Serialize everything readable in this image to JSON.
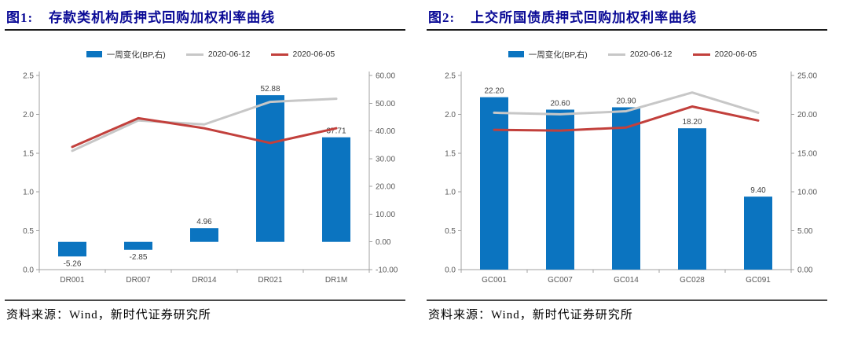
{
  "source_note": "资料来源：Wind，新时代证券研究所",
  "colors": {
    "bar_blue": "#0b74c0",
    "line_gray": "#c7c7c7",
    "line_red": "#c2403c",
    "title_blue": "#0a0a96",
    "axis": "#a0a0a0",
    "tick_text": "#595959",
    "label_text": "#404040"
  },
  "charts": [
    {
      "figure_label": "图1:",
      "title": "存款类机构质押式回购加权利率曲线",
      "legend": [
        {
          "type": "bar",
          "label": "一周变化(BP,右)",
          "color": "#0b74c0"
        },
        {
          "type": "line",
          "label": "2020-06-12",
          "color": "#c7c7c7"
        },
        {
          "type": "line",
          "label": "2020-06-05",
          "color": "#c2403c"
        }
      ],
      "chart_data": {
        "type": "bar+line combo",
        "categories": [
          "DR001",
          "DR007",
          "DR014",
          "DR021",
          "DR1M"
        ],
        "series": [
          {
            "name": "一周变化(BP,右)",
            "type": "bar",
            "axis": "right",
            "values": [
              -5.26,
              -2.85,
              4.96,
              52.88,
              37.71
            ],
            "labels": [
              "-5.26",
              "-2.85",
              "4.96",
              "52.88",
              "37.71"
            ]
          },
          {
            "name": "2020-06-12",
            "type": "line",
            "axis": "left",
            "values": [
              1.53,
              1.92,
              1.87,
              2.16,
              2.2
            ]
          },
          {
            "name": "2020-06-05",
            "type": "line",
            "axis": "left",
            "values": [
              1.58,
              1.95,
              1.82,
              1.63,
              1.82
            ]
          }
        ],
        "left_axis": {
          "min": 0,
          "max": 2.5,
          "ticks": [
            {
              "v": 0.0,
              "label": "0.0"
            },
            {
              "v": 0.5,
              "label": "0.5"
            },
            {
              "v": 1.0,
              "label": "1.0"
            },
            {
              "v": 1.5,
              "label": "1.5"
            },
            {
              "v": 2.0,
              "label": "2.0"
            },
            {
              "v": 2.5,
              "label": "2.5"
            }
          ]
        },
        "right_axis": {
          "min": -10,
          "max": 60,
          "ticks": [
            {
              "v": -10,
              "label": "-10.00"
            },
            {
              "v": 0,
              "label": "0.00"
            },
            {
              "v": 10,
              "label": "10.00"
            },
            {
              "v": 20,
              "label": "20.00"
            },
            {
              "v": 30,
              "label": "30.00"
            },
            {
              "v": 40,
              "label": "40.00"
            },
            {
              "v": 50,
              "label": "50.00"
            },
            {
              "v": 60,
              "label": "60.00"
            }
          ]
        }
      }
    },
    {
      "figure_label": "图2:",
      "title": "上交所国债质押式回购加权利率曲线",
      "legend": [
        {
          "type": "bar",
          "label": "一周变化(BP,右)",
          "color": "#0b74c0"
        },
        {
          "type": "line",
          "label": "2020-06-12",
          "color": "#c7c7c7"
        },
        {
          "type": "line",
          "label": "2020-06-05",
          "color": "#c2403c"
        }
      ],
      "chart_data": {
        "type": "bar+line combo",
        "categories": [
          "GC001",
          "GC007",
          "GC014",
          "GC028",
          "GC091"
        ],
        "series": [
          {
            "name": "一周变化(BP,右)",
            "type": "bar",
            "axis": "right",
            "values": [
              22.2,
              20.6,
              20.9,
              18.2,
              9.4
            ],
            "labels": [
              "22.20",
              "20.60",
              "20.90",
              "18.20",
              "9.40"
            ]
          },
          {
            "name": "2020-06-12",
            "type": "line",
            "axis": "left",
            "values": [
              2.02,
              2.0,
              2.04,
              2.28,
              2.02
            ]
          },
          {
            "name": "2020-06-05",
            "type": "line",
            "axis": "left",
            "values": [
              1.8,
              1.79,
              1.83,
              2.1,
              1.92
            ]
          }
        ],
        "left_axis": {
          "min": 0,
          "max": 2.5,
          "ticks": [
            {
              "v": 0.0,
              "label": "0.0"
            },
            {
              "v": 0.5,
              "label": "0.5"
            },
            {
              "v": 1.0,
              "label": "1.0"
            },
            {
              "v": 1.5,
              "label": "1.5"
            },
            {
              "v": 2.0,
              "label": "2.0"
            },
            {
              "v": 2.5,
              "label": "2.5"
            }
          ]
        },
        "right_axis": {
          "min": 0,
          "max": 25,
          "ticks": [
            {
              "v": 0,
              "label": "0.00"
            },
            {
              "v": 5,
              "label": "5.00"
            },
            {
              "v": 10,
              "label": "10.00"
            },
            {
              "v": 15,
              "label": "15.00"
            },
            {
              "v": 20,
              "label": "20.00"
            },
            {
              "v": 25,
              "label": "25.00"
            }
          ]
        }
      }
    }
  ]
}
